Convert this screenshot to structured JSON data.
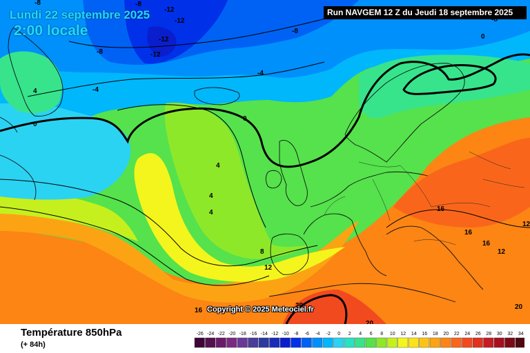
{
  "header": {
    "date": "Lundi 22 septembre 2025",
    "local_time": "2:00 locale",
    "run": "Run NAVGEM 12 Z du Jeudi 18 septembre 2025"
  },
  "footer": {
    "variable": "Température 850hPa",
    "lead": "(+ 84h)",
    "copyright": "Copyright © 2025 Meteociel.fr"
  },
  "legend": {
    "values": [
      "-26",
      "-24",
      "-22",
      "-20",
      "-18",
      "-16",
      "-14",
      "-12",
      "-10",
      "-8",
      "-6",
      "-4",
      "-2",
      "0",
      "2",
      "4",
      "6",
      "8",
      "10",
      "12",
      "14",
      "16",
      "18",
      "20",
      "22",
      "24",
      "26",
      "28",
      "30",
      "32",
      "34"
    ],
    "colors": [
      "#3c0638",
      "#55104f",
      "#6b1a6a",
      "#7a2a83",
      "#6a3a99",
      "#4a3d98",
      "#2b3aa0",
      "#1a2db8",
      "#0a1ecd",
      "#0030e8",
      "#0062f4",
      "#0090fc",
      "#00b7fb",
      "#2bd3f2",
      "#28e2c2",
      "#37e48c",
      "#55e24c",
      "#8ee82a",
      "#c5f01e",
      "#f4f51c",
      "#fbe21a",
      "#fcc317",
      "#fca314",
      "#fc8514",
      "#f9661b",
      "#f24a1f",
      "#e1311f",
      "#c71a22",
      "#a60f20",
      "#7a0a18",
      "#4e0810"
    ]
  },
  "contours": {
    "labels": [
      "-8",
      "-8",
      "-12",
      "-12",
      "-8",
      "-12",
      "-12",
      "-8",
      "-8",
      "-4",
      "-4",
      "4",
      "0",
      "0",
      "4",
      "4",
      "4",
      "8",
      "12",
      "16",
      "20",
      "20",
      "16",
      "16",
      "16",
      "12",
      "12",
      "0",
      "20"
    ]
  }
}
